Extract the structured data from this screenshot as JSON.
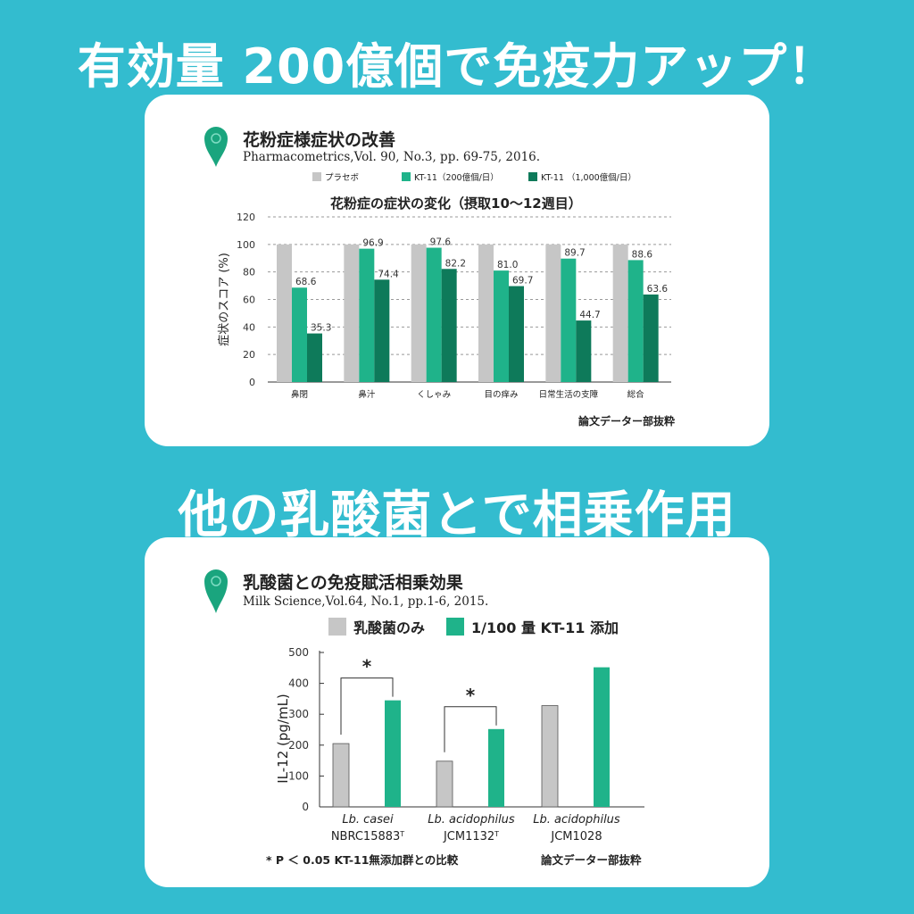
{
  "headline_top": "有効量 200億個で免疫力アップ！",
  "headline_middle": "他の乳酸菌とで相乗作用",
  "panel1": {
    "title": "花粉症様症状の改善",
    "citation": "Pharmacometrics,Vol. 90, No.3, pp. 69-75, 2016."
  },
  "panel2": {
    "title": "乳酸菌との免疫賦活相乗効果",
    "citation": "Milk Science,Vol.64, No.1, pp.1-6, 2015."
  },
  "colors": {
    "background": "#33bccf",
    "placebo": "#c6c6c6",
    "kt11_low": "#1fb38a",
    "kt11_high": "#0e7a5a",
    "pin": "#1aa57e"
  },
  "chart_data": [
    {
      "type": "bar",
      "title": "花粉症の症状の変化（摂取10〜12週目）",
      "xlabel": "",
      "ylabel": "症状のスコア (%)",
      "ylim": [
        0,
        120
      ],
      "yticks": [
        0,
        20,
        40,
        60,
        80,
        100,
        120
      ],
      "grid": true,
      "legend_position": "top",
      "categories": [
        "鼻閉",
        "鼻汁",
        "くしゃみ",
        "目の痒み",
        "日常生活の支障",
        "総合"
      ],
      "series": [
        {
          "name": "プラセボ",
          "color": "#c6c6c6",
          "values": [
            100,
            100,
            100,
            100,
            100,
            100
          ],
          "labels": [
            "",
            "",
            "",
            "",
            "",
            ""
          ]
        },
        {
          "name": "KT-11（200億個/日）",
          "color": "#1fb38a",
          "values": [
            68.6,
            96.9,
            97.6,
            81.0,
            89.7,
            88.6
          ],
          "labels": [
            "68.6",
            "96.9",
            "97.6",
            "81.0",
            "89.7",
            "88.6"
          ]
        },
        {
          "name": "KT-11 （1,000億個/日）",
          "color": "#0e7a5a",
          "values": [
            35.3,
            74.4,
            82.2,
            69.7,
            44.7,
            63.6
          ],
          "labels": [
            "35.3",
            "74.4",
            "82.2",
            "69.7",
            "44.7",
            "63.6"
          ]
        }
      ],
      "footnote": "論文データー部抜粋"
    },
    {
      "type": "bar",
      "title": "",
      "xlabel": "",
      "ylabel": "IL-12 (pg/mL)",
      "ylim": [
        0,
        500
      ],
      "yticks": [
        0,
        100,
        200,
        300,
        400,
        500
      ],
      "grid": false,
      "legend_position": "top",
      "categories": [
        {
          "name": "Lb. casei",
          "strain": "NBRC15883",
          "sup": "T"
        },
        {
          "name": "Lb. acidophilus",
          "strain": "JCM1132",
          "sup": "T"
        },
        {
          "name": "Lb. acidophilus",
          "strain": "JCM1028",
          "sup": ""
        }
      ],
      "series": [
        {
          "name": "乳酸菌のみ",
          "color": "#c6c6c6",
          "values": [
            205,
            148,
            328
          ]
        },
        {
          "name": "1/100 量 KT-11 添加",
          "color": "#1fb38a",
          "values": [
            345,
            252,
            452
          ]
        }
      ],
      "significance": [
        {
          "category_index": 0,
          "mark": "*"
        },
        {
          "category_index": 1,
          "mark": "*"
        }
      ],
      "footnote_left": "* P ＜ 0.05 KT-11無添加群との比較",
      "footnote_right": "論文データー部抜粋"
    }
  ]
}
